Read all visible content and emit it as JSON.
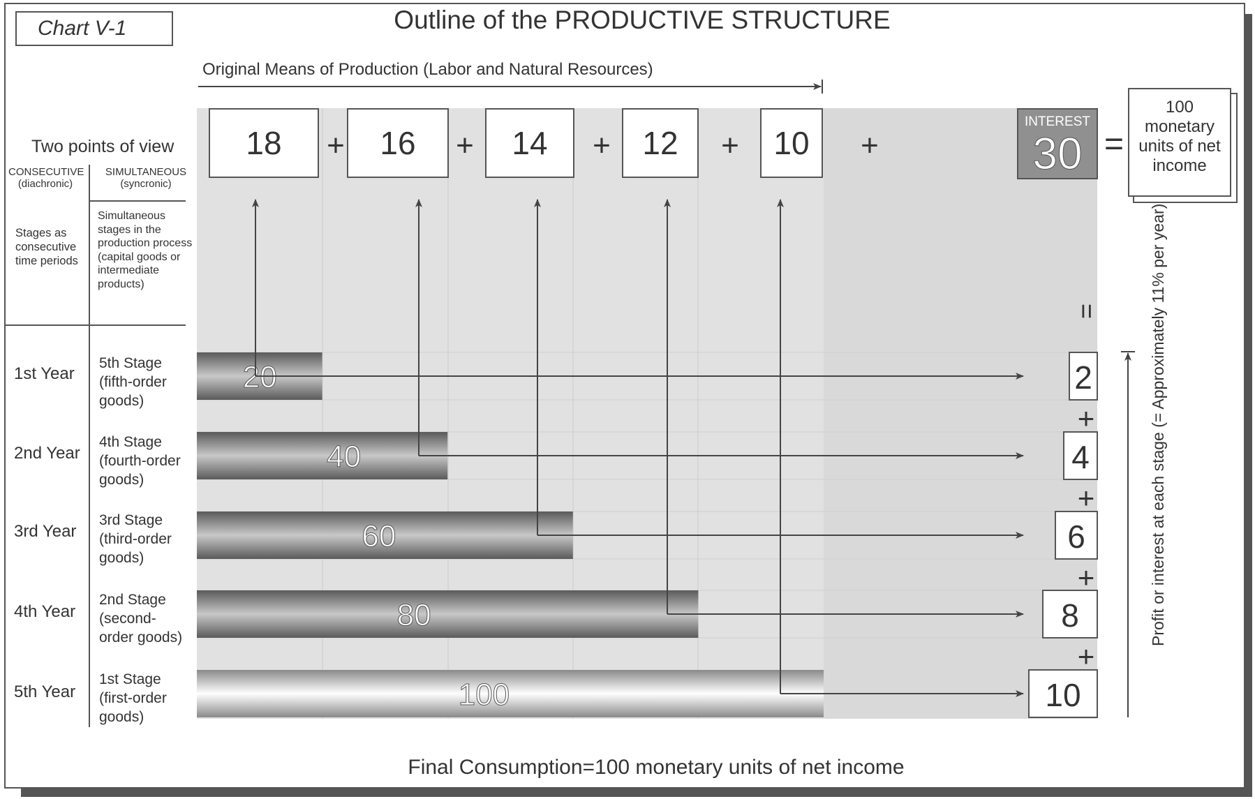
{
  "chart_label": "Chart V-1",
  "title": "Outline of the PRODUCTIVE STRUCTURE",
  "original_means_label": "Original Means of Production (Labor and Natural Resources)",
  "original_means": [
    18,
    16,
    14,
    12,
    10
  ],
  "plus": "+",
  "equals": "=",
  "equals_vertical": "=",
  "interest_label": "INTEREST",
  "interest_total": "30",
  "net_income_box": "100 monetary units of net income",
  "points_of_view": {
    "title": "Two points of view",
    "consecutive": "CONSECUTIVE",
    "consecutive_sub": "(diachronic)",
    "simultaneous": "SIMULTANEOUS",
    "simultaneous_sub": "(syncronic)",
    "consecutive_desc": "Stages as consecutive time periods",
    "simultaneous_desc": "Simultaneous stages in the production process (capital goods or intermediate products)"
  },
  "rows": [
    {
      "year": "1st Year",
      "stage": "5th Stage (fifth-order goods)",
      "bar": 20,
      "interest": 2
    },
    {
      "year": "2nd Year",
      "stage": "4th Stage (fourth-order goods)",
      "bar": 40,
      "interest": 4
    },
    {
      "year": "3rd Year",
      "stage": "3rd Stage (third-order goods)",
      "bar": 60,
      "interest": 6
    },
    {
      "year": "4th  Year",
      "stage": "2nd Stage (second-order goods)",
      "bar": 80,
      "interest": 8
    },
    {
      "year": "5th Year",
      "stage": "1st Stage (first-order goods)",
      "bar": 100,
      "interest": 10
    }
  ],
  "profit_axis_label": "Profit or interest at each stage (= Approximately 11% per year)",
  "footer": "Final Consumption=100 monetary units of net income"
}
